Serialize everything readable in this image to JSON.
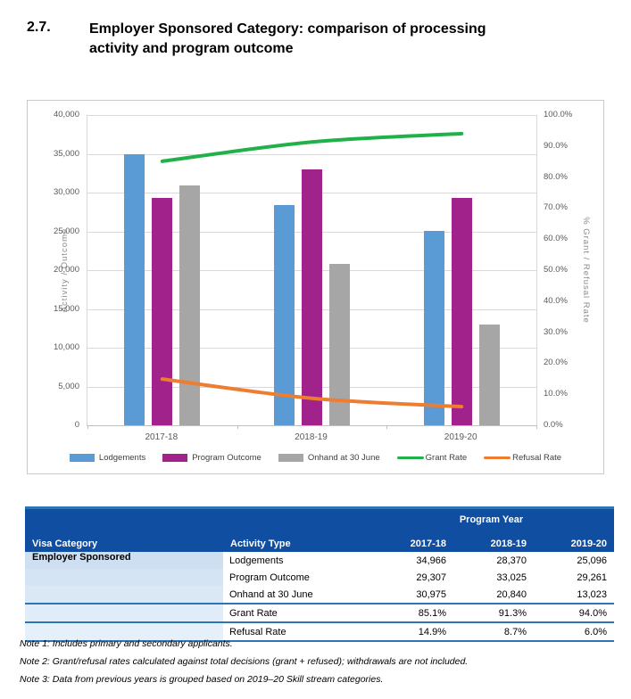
{
  "heading": {
    "number": "2.7.",
    "title": "Employer Sponsored Category: comparison of processing activity and program outcome"
  },
  "chart_data": {
    "type": "bar",
    "subtype": "combo-bar-line",
    "categories": [
      "2017-18",
      "2018-19",
      "2019-20"
    ],
    "series": [
      {
        "name": "Lodgements",
        "render": "bar",
        "axis": "left",
        "color": "#5B9BD5",
        "values": [
          34966,
          28370,
          25096
        ]
      },
      {
        "name": "Program Outcome",
        "render": "bar",
        "axis": "left",
        "color": "#A2228C",
        "values": [
          29307,
          33025,
          29261
        ]
      },
      {
        "name": "Onhand at 30 June",
        "render": "bar",
        "axis": "left",
        "color": "#A6A6A6",
        "values": [
          30975,
          20840,
          13023
        ]
      },
      {
        "name": "Grant Rate",
        "render": "line",
        "axis": "right",
        "color": "#21B14A",
        "values": [
          85.1,
          91.3,
          94.0
        ]
      },
      {
        "name": "Refusal Rate",
        "render": "line",
        "axis": "right",
        "color": "#ED7D31",
        "values": [
          14.9,
          8.7,
          6.0
        ]
      }
    ],
    "left_axis": {
      "label": "Activity / Outcome",
      "min": 0,
      "max": 40000,
      "step": 5000,
      "ticks": [
        "0",
        "5,000",
        "10,000",
        "15,000",
        "20,000",
        "25,000",
        "30,000",
        "35,000",
        "40,000"
      ]
    },
    "right_axis": {
      "label": "% Grant / Refusal Rate",
      "min": 0,
      "max": 100,
      "step": 10,
      "ticks": [
        "0.0%",
        "10.0%",
        "20.0%",
        "30.0%",
        "40.0%",
        "50.0%",
        "60.0%",
        "70.0%",
        "80.0%",
        "90.0%",
        "100.0%"
      ]
    },
    "grid": true,
    "legend_position": "bottom"
  },
  "table": {
    "header": {
      "program_year": "Program Year",
      "visa_category": "Visa Category",
      "activity_type": "Activity Type",
      "years": [
        "2017-18",
        "2018-19",
        "2019-20"
      ]
    },
    "visa_category_value": "Employer Sponsored",
    "rows": [
      {
        "activity": "Lodgements",
        "values": [
          "34,966",
          "28,370",
          "25,096"
        ]
      },
      {
        "activity": "Program Outcome",
        "values": [
          "29,307",
          "33,025",
          "29,261"
        ]
      },
      {
        "activity": "Onhand at 30 June",
        "values": [
          "30,975",
          "20,840",
          "13,023"
        ]
      },
      {
        "activity": "Grant Rate",
        "values": [
          "85.1%",
          "91.3%",
          "94.0%"
        ]
      },
      {
        "activity": "Refusal Rate",
        "values": [
          "14.9%",
          "8.7%",
          "6.0%"
        ]
      }
    ]
  },
  "notes": [
    "Note 1: Includes primary and secondary applicants.",
    "Note 2: Grant/refusal rates calculated against total decisions (grant + refused); withdrawals are not included.",
    "Note 3: Data from previous years is grouped based on 2019–20 Skill stream categories."
  ]
}
